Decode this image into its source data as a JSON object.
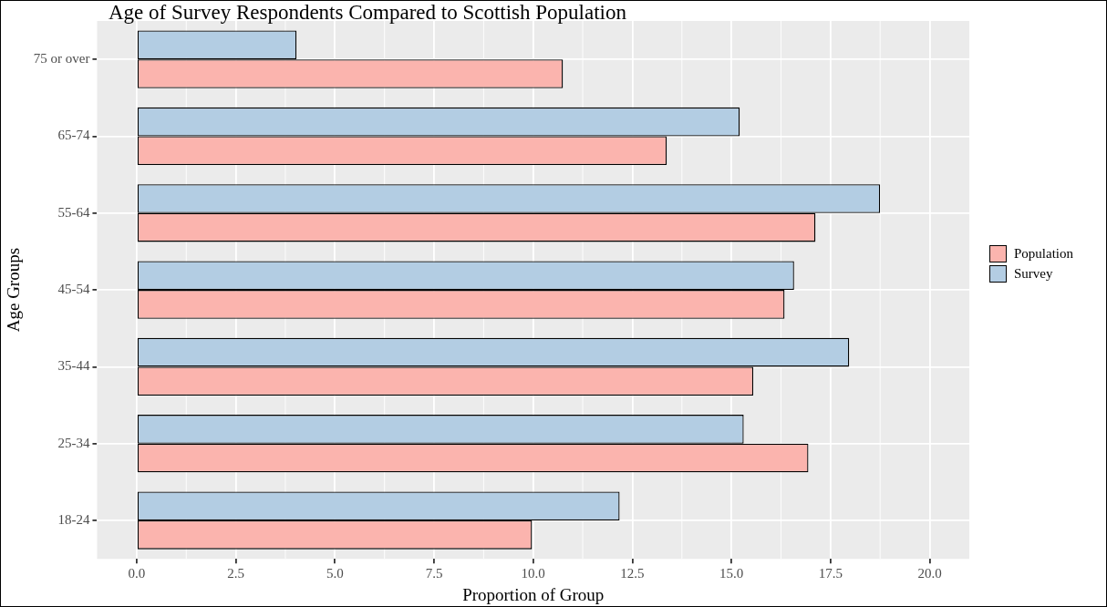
{
  "chart_data": {
    "type": "bar",
    "orientation": "horizontal",
    "title": "Age of Survey Respondents Compared to Scottish Population",
    "xlabel": "Proportion of Group",
    "ylabel": "Age Groups",
    "categories": [
      "75 or over",
      "65-74",
      "55-64",
      "45-54",
      "35-44",
      "25-34",
      "18-24"
    ],
    "series": [
      {
        "name": "Population",
        "color": "#fbb4ae",
        "values": [
          10.75,
          13.37,
          17.12,
          16.34,
          15.55,
          16.94,
          9.97
        ]
      },
      {
        "name": "Survey",
        "color": "#b3cde3",
        "values": [
          4.03,
          15.21,
          18.75,
          16.58,
          17.97,
          15.31,
          12.18
        ]
      }
    ],
    "xlim": [
      -1,
      21
    ],
    "xticks": [
      {
        "value": 0,
        "label": "0.0"
      },
      {
        "value": 2.5,
        "label": "2.5"
      },
      {
        "value": 5,
        "label": "5.0"
      },
      {
        "value": 7.5,
        "label": "7.5"
      },
      {
        "value": 10,
        "label": "10.0"
      },
      {
        "value": 12.5,
        "label": "12.5"
      },
      {
        "value": 15,
        "label": "15.0"
      },
      {
        "value": 17.5,
        "label": "17.5"
      },
      {
        "value": 20,
        "label": "20.0"
      }
    ],
    "grid": true,
    "legend": "right"
  }
}
